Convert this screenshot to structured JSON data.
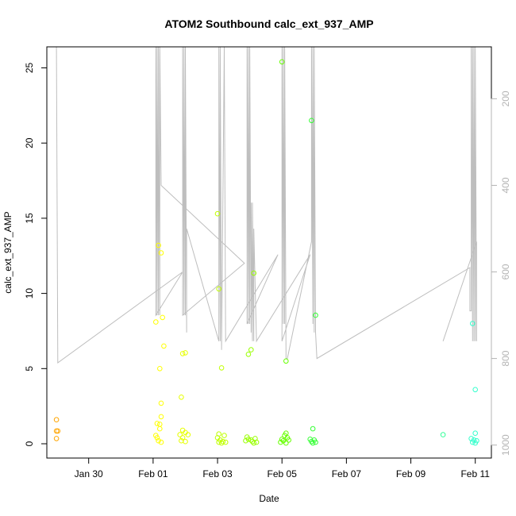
{
  "chart_data": {
    "type": "scatter",
    "title": "ATOM2 Southbound calc_ext_937_AMP",
    "xlabel": "Date",
    "ylabel": "calc_ext_937_AMP",
    "x_ticks": [
      "Jan 30",
      "Feb 01",
      "Feb 03",
      "Feb 05",
      "Feb 07",
      "Feb 09",
      "Feb 11"
    ],
    "y_ticks": [
      0,
      5,
      10,
      15,
      20,
      25
    ],
    "y_right_ticks": [
      200,
      400,
      600,
      800,
      1000
    ],
    "xlim": [
      "2018-01-28T16:50",
      "2018-02-11T12:00"
    ],
    "ylim": [
      -0.95,
      26.4
    ],
    "y_right_lim": [
      1030,
      80
    ],
    "grid": false,
    "legend": "none",
    "points": [
      {
        "x": "2018-01-29T00:00",
        "y": 1.6,
        "color": "#FFA500"
      },
      {
        "x": "2018-01-29T00:00",
        "y": 0.85,
        "color": "#FFA500"
      },
      {
        "x": "2018-01-29T01:00",
        "y": 0.85,
        "color": "#FFA500"
      },
      {
        "x": "2018-01-29T00:00",
        "y": 0.35,
        "color": "#FFA500"
      },
      {
        "x": "2018-02-01T02:00",
        "y": 8.1,
        "color": "#FFFF00"
      },
      {
        "x": "2018-02-01T04:00",
        "y": 13.2,
        "color": "#FFFF00"
      },
      {
        "x": "2018-02-01T06:00",
        "y": 12.7,
        "color": "#FFFF00"
      },
      {
        "x": "2018-02-01T07:00",
        "y": 8.4,
        "color": "#FFFF00"
      },
      {
        "x": "2018-02-01T08:00",
        "y": 6.5,
        "color": "#FFFF00"
      },
      {
        "x": "2018-02-01T05:00",
        "y": 5.0,
        "color": "#FFFF00"
      },
      {
        "x": "2018-02-01T06:00",
        "y": 2.7,
        "color": "#FFFF00"
      },
      {
        "x": "2018-02-01T06:00",
        "y": 1.8,
        "color": "#FFFF00"
      },
      {
        "x": "2018-02-01T03:00",
        "y": 1.35,
        "color": "#FFFF00"
      },
      {
        "x": "2018-02-01T05:00",
        "y": 1.3,
        "color": "#FFFF00"
      },
      {
        "x": "2018-02-01T05:00",
        "y": 1.0,
        "color": "#FFFF00"
      },
      {
        "x": "2018-02-01T02:00",
        "y": 0.55,
        "color": "#FFFF00"
      },
      {
        "x": "2018-02-01T03:00",
        "y": 0.4,
        "color": "#FFFF00"
      },
      {
        "x": "2018-02-01T04:00",
        "y": 0.2,
        "color": "#FFFF00"
      },
      {
        "x": "2018-02-01T06:00",
        "y": 0.1,
        "color": "#FFFF00"
      },
      {
        "x": "2018-02-01T21:00",
        "y": 3.1,
        "color": "#E6FF00"
      },
      {
        "x": "2018-02-01T22:00",
        "y": 6.0,
        "color": "#E6FF00"
      },
      {
        "x": "2018-02-02T00:00",
        "y": 6.05,
        "color": "#E6FF00"
      },
      {
        "x": "2018-02-01T22:00",
        "y": 0.9,
        "color": "#E6FF00"
      },
      {
        "x": "2018-02-02T00:00",
        "y": 0.75,
        "color": "#E6FF00"
      },
      {
        "x": "2018-02-01T20:00",
        "y": 0.6,
        "color": "#E6FF00"
      },
      {
        "x": "2018-02-02T02:00",
        "y": 0.6,
        "color": "#E6FF00"
      },
      {
        "x": "2018-02-01T22:00",
        "y": 0.4,
        "color": "#E6FF00"
      },
      {
        "x": "2018-02-01T21:00",
        "y": 0.2,
        "color": "#E6FF00"
      },
      {
        "x": "2018-02-02T00:00",
        "y": 0.15,
        "color": "#E6FF00"
      },
      {
        "x": "2018-02-03T00:00",
        "y": 15.3,
        "color": "#C0FF00"
      },
      {
        "x": "2018-02-03T01:00",
        "y": 10.3,
        "color": "#C0FF00"
      },
      {
        "x": "2018-02-03T03:00",
        "y": 5.05,
        "color": "#C0FF00"
      },
      {
        "x": "2018-02-03T01:00",
        "y": 0.65,
        "color": "#C0FF00"
      },
      {
        "x": "2018-02-03T05:00",
        "y": 0.55,
        "color": "#C0FF00"
      },
      {
        "x": "2018-02-03T00:00",
        "y": 0.4,
        "color": "#C0FF00"
      },
      {
        "x": "2018-02-03T02:00",
        "y": 0.25,
        "color": "#C0FF00"
      },
      {
        "x": "2018-02-03T04:00",
        "y": 0.15,
        "color": "#C0FF00"
      },
      {
        "x": "2018-02-03T01:00",
        "y": 0.1,
        "color": "#C0FF00"
      },
      {
        "x": "2018-02-03T06:00",
        "y": 0.1,
        "color": "#C0FF00"
      },
      {
        "x": "2018-02-03T03:00",
        "y": 0.05,
        "color": "#C0FF00"
      },
      {
        "x": "2018-02-04T03:00",
        "y": 11.35,
        "color": "#99FF00"
      },
      {
        "x": "2018-02-04T01:00",
        "y": 6.25,
        "color": "#99FF00"
      },
      {
        "x": "2018-02-03T23:00",
        "y": 5.95,
        "color": "#99FF00"
      },
      {
        "x": "2018-02-03T22:00",
        "y": 0.45,
        "color": "#99FF00"
      },
      {
        "x": "2018-02-04T04:00",
        "y": 0.35,
        "color": "#99FF00"
      },
      {
        "x": "2018-02-03T23:00",
        "y": 0.3,
        "color": "#99FF00"
      },
      {
        "x": "2018-02-04T01:00",
        "y": 0.25,
        "color": "#99FF00"
      },
      {
        "x": "2018-02-03T21:00",
        "y": 0.2,
        "color": "#99FF00"
      },
      {
        "x": "2018-02-04T02:00",
        "y": 0.15,
        "color": "#99FF00"
      },
      {
        "x": "2018-02-04T05:00",
        "y": 0.1,
        "color": "#99FF00"
      },
      {
        "x": "2018-02-04T03:00",
        "y": 0.05,
        "color": "#99FF00"
      },
      {
        "x": "2018-02-05T00:00",
        "y": 25.4,
        "color": "#66FF00"
      },
      {
        "x": "2018-02-05T03:00",
        "y": 5.5,
        "color": "#66FF00"
      },
      {
        "x": "2018-02-05T03:00",
        "y": 0.7,
        "color": "#66FF00"
      },
      {
        "x": "2018-02-05T02:00",
        "y": 0.55,
        "color": "#66FF00"
      },
      {
        "x": "2018-02-05T04:00",
        "y": 0.4,
        "color": "#66FF00"
      },
      {
        "x": "2018-02-05T00:00",
        "y": 0.3,
        "color": "#66FF00"
      },
      {
        "x": "2018-02-05T05:00",
        "y": 0.25,
        "color": "#66FF00"
      },
      {
        "x": "2018-02-05T01:00",
        "y": 0.2,
        "color": "#66FF00"
      },
      {
        "x": "2018-02-04T23:00",
        "y": 0.1,
        "color": "#66FF00"
      },
      {
        "x": "2018-02-05T03:00",
        "y": 0.05,
        "color": "#66FF00"
      },
      {
        "x": "2018-02-05T22:00",
        "y": 21.5,
        "color": "#33FF33"
      },
      {
        "x": "2018-02-06T01:00",
        "y": 8.55,
        "color": "#33FF33"
      },
      {
        "x": "2018-02-05T23:00",
        "y": 1.0,
        "color": "#33FF33"
      },
      {
        "x": "2018-02-05T21:00",
        "y": 0.3,
        "color": "#33FF33"
      },
      {
        "x": "2018-02-06T00:00",
        "y": 0.25,
        "color": "#33FF33"
      },
      {
        "x": "2018-02-05T22:00",
        "y": 0.15,
        "color": "#33FF33"
      },
      {
        "x": "2018-02-06T01:00",
        "y": 0.1,
        "color": "#33FF33"
      },
      {
        "x": "2018-02-05T23:00",
        "y": 0.05,
        "color": "#33FF33"
      },
      {
        "x": "2018-02-10T00:00",
        "y": 0.6,
        "color": "#33FF99"
      },
      {
        "x": "2018-02-10T22:00",
        "y": 8.0,
        "color": "#33FFCC"
      },
      {
        "x": "2018-02-11T00:00",
        "y": 3.6,
        "color": "#33FFCC"
      },
      {
        "x": "2018-02-11T00:00",
        "y": 0.7,
        "color": "#33FFCC"
      },
      {
        "x": "2018-02-10T21:00",
        "y": 0.35,
        "color": "#33FFCC"
      },
      {
        "x": "2018-02-10T23:00",
        "y": 0.25,
        "color": "#33FFCC"
      },
      {
        "x": "2018-02-11T01:00",
        "y": 0.2,
        "color": "#33FFCC"
      },
      {
        "x": "2018-02-10T22:00",
        "y": 0.1,
        "color": "#33FFCC"
      },
      {
        "x": "2018-02-11T00:00",
        "y": 0.05,
        "color": "#33FFCC"
      }
    ],
    "secondary_line": {
      "color": "#bebebe",
      "points": [
        [
          "2018-01-29T00:00",
          80
        ],
        [
          "2018-01-29T01:00",
          810
        ],
        [
          "2018-02-01T22:00",
          600
        ],
        [
          "2018-02-01T02:00",
          700
        ],
        [
          "2018-02-01T02:00",
          80
        ],
        [
          "2018-02-01T03:00",
          700
        ],
        [
          "2018-02-01T03:00",
          80
        ],
        [
          "2018-02-01T04:00",
          700
        ],
        [
          "2018-02-01T04:00",
          80
        ],
        [
          "2018-02-01T05:00",
          700
        ],
        [
          "2018-02-01T05:00",
          80
        ],
        [
          "2018-02-01T06:00",
          400
        ],
        [
          "2018-02-03T20:00",
          580
        ],
        [
          "2018-02-01T22:00",
          700
        ],
        [
          "2018-02-01T22:00",
          80
        ],
        [
          "2018-02-01T23:00",
          700
        ],
        [
          "2018-02-01T23:00",
          80
        ],
        [
          "2018-02-02T00:00",
          700
        ],
        [
          "2018-02-02T00:00",
          80
        ],
        [
          "2018-02-02T01:00",
          740
        ],
        [
          "2018-02-02T01:00",
          500
        ],
        [
          "2018-02-03T01:00",
          760
        ],
        [
          "2018-02-03T01:00",
          80
        ],
        [
          "2018-02-03T02:00",
          760
        ],
        [
          "2018-02-03T02:00",
          80
        ],
        [
          "2018-02-03T03:00",
          780
        ],
        [
          "2018-02-03T05:00",
          80
        ],
        [
          "2018-02-03T06:00",
          760
        ],
        [
          "2018-02-04T21:00",
          560
        ],
        [
          "2018-02-03T22:00",
          720
        ],
        [
          "2018-02-03T22:00",
          80
        ],
        [
          "2018-02-03T23:00",
          720
        ],
        [
          "2018-02-03T23:00",
          80
        ],
        [
          "2018-02-04T00:00",
          720
        ],
        [
          "2018-02-04T00:00",
          80
        ],
        [
          "2018-02-04T01:00",
          740
        ],
        [
          "2018-02-04T01:00",
          440
        ],
        [
          "2018-02-04T02:00",
          760
        ],
        [
          "2018-02-04T02:00",
          440
        ],
        [
          "2018-02-04T03:00",
          760
        ],
        [
          "2018-02-04T03:00",
          500
        ],
        [
          "2018-02-04T05:00",
          760
        ],
        [
          "2018-02-05T21:00",
          560
        ],
        [
          "2018-02-05T00:00",
          760
        ],
        [
          "2018-02-05T00:00",
          80
        ],
        [
          "2018-02-05T01:00",
          720
        ],
        [
          "2018-02-05T01:00",
          80
        ],
        [
          "2018-02-05T02:00",
          720
        ],
        [
          "2018-02-05T02:00",
          80
        ],
        [
          "2018-02-05T03:00",
          800
        ],
        [
          "2018-02-05T04:00",
          800
        ],
        [
          "2018-02-05T22:00",
          530
        ],
        [
          "2018-02-05T22:00",
          80
        ],
        [
          "2018-02-05T23:00",
          720
        ],
        [
          "2018-02-05T23:00",
          80
        ],
        [
          "2018-02-06T00:00",
          740
        ],
        [
          "2018-02-06T00:00",
          80
        ],
        [
          "2018-02-06T01:00",
          740
        ],
        [
          "2018-02-06T02:00",
          800
        ],
        [
          "2018-02-10T20:00",
          590
        ],
        [
          "2018-02-10T20:00",
          690
        ],
        [
          "2018-02-10T21:00",
          690
        ],
        [
          "2018-02-10T21:00",
          80
        ],
        [
          "2018-02-10T22:00",
          760
        ],
        [
          "2018-02-10T22:00",
          80
        ],
        [
          "2018-02-10T23:00",
          760
        ],
        [
          "2018-02-10T23:00",
          80
        ],
        [
          "2018-02-11T00:00",
          760
        ],
        [
          "2018-02-11T00:00",
          80
        ],
        [
          "2018-02-11T01:00",
          760
        ],
        [
          "2018-02-11T01:00",
          530
        ],
        [
          "2018-02-10T00:00",
          760
        ],
        [
          "2018-02-10T00:00",
          760
        ]
      ]
    }
  }
}
